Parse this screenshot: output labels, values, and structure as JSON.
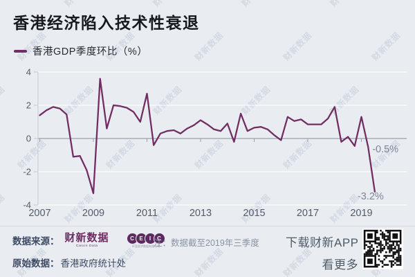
{
  "title": "香港经济陷入技术性衰退",
  "legend": {
    "label": "香港GDP季度环比（%）"
  },
  "chart_data": {
    "type": "line",
    "title": "香港经济陷入技术性衰退",
    "series_name": "香港GDP季度环比（%）",
    "line_color": "#722E62",
    "grid": true,
    "ylim": [
      -4,
      4
    ],
    "y_ticks": [
      4,
      2,
      0,
      -2,
      -4
    ],
    "x_tick_labels": [
      "2007",
      "2009",
      "2011",
      "2013",
      "2015",
      "2017",
      "2019"
    ],
    "quarters": [
      "2007Q1",
      "2007Q2",
      "2007Q3",
      "2007Q4",
      "2008Q1",
      "2008Q2",
      "2008Q3",
      "2008Q4",
      "2009Q1",
      "2009Q2",
      "2009Q3",
      "2009Q4",
      "2010Q1",
      "2010Q2",
      "2010Q3",
      "2010Q4",
      "2011Q1",
      "2011Q2",
      "2011Q3",
      "2011Q4",
      "2012Q1",
      "2012Q2",
      "2012Q3",
      "2012Q4",
      "2013Q1",
      "2013Q2",
      "2013Q3",
      "2013Q4",
      "2014Q1",
      "2014Q2",
      "2014Q3",
      "2014Q4",
      "2015Q1",
      "2015Q2",
      "2015Q3",
      "2015Q4",
      "2016Q1",
      "2016Q2",
      "2016Q3",
      "2016Q4",
      "2017Q1",
      "2017Q2",
      "2017Q3",
      "2017Q4",
      "2018Q1",
      "2018Q2",
      "2018Q3",
      "2018Q4",
      "2019Q1",
      "2019Q2",
      "2019Q3"
    ],
    "values": [
      1.4,
      1.7,
      1.9,
      1.8,
      1.45,
      -1.1,
      -1.05,
      -1.9,
      -3.3,
      3.6,
      0.6,
      2.0,
      1.95,
      1.85,
      1.6,
      1.0,
      2.7,
      -0.4,
      0.3,
      0.45,
      0.5,
      0.3,
      0.6,
      0.8,
      1.1,
      0.85,
      0.55,
      0.45,
      0.9,
      -0.2,
      1.5,
      0.45,
      0.65,
      0.7,
      0.55,
      0.2,
      -0.1,
      1.3,
      1.05,
      1.15,
      0.85,
      0.85,
      0.85,
      1.2,
      1.9,
      -0.2,
      0.1,
      -0.45,
      1.3,
      -0.5,
      -3.2
    ],
    "annotations": [
      {
        "text": "-0.5%",
        "quarter": "2019Q2",
        "value": -0.5
      },
      {
        "text": "-3.2%",
        "quarter": "2019Q3",
        "value": -3.2
      }
    ]
  },
  "footer": {
    "source_label": "数据来源：",
    "caixin_logo": {
      "text": "财新数据",
      "subtext": "Caixin Data"
    },
    "ceic_logo": {
      "letters": [
        "C",
        "E",
        "I",
        "C"
      ],
      "tagline": "环亚经济数据有限公司"
    },
    "note": "注：数据截至2019年三季度",
    "raw_label": "原始数据：",
    "raw_value": "香港政府统计处",
    "app_cta_line1": "下载财新APP",
    "app_cta_line2": "看更多"
  },
  "watermark": "财新数据",
  "colors": {
    "background": "#e9edf2",
    "line": "#722E62",
    "zero_axis": "#9aa2ad",
    "gridline": "#ffffff",
    "tick_label": "#535c69",
    "annotation": "#7d8694",
    "footer_dark": "#3e4a63",
    "note_gray": "#8a93a3",
    "caixin_purple": "#6E2B60"
  }
}
